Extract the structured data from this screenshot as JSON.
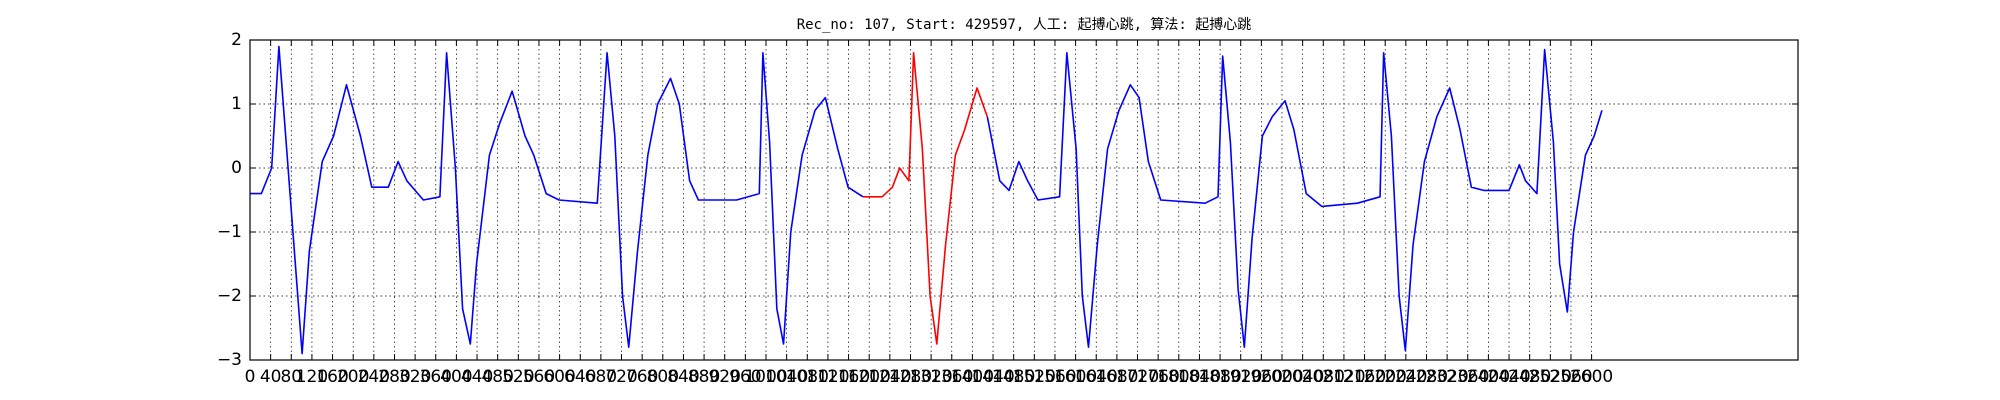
{
  "chart_data": {
    "type": "line",
    "title": "Rec_no: 107, Start: 429597, 人工: 起搏心跳, 算法: 起搏心跳",
    "x": [
      0,
      22,
      42,
      56,
      101,
      115,
      140,
      162,
      187,
      214,
      236,
      268,
      287,
      304,
      336,
      368,
      381,
      398,
      412,
      427,
      439,
      464,
      484,
      508,
      533,
      550,
      574,
      599,
      673,
      692,
      707,
      722,
      734,
      751,
      771,
      790,
      815,
      832,
      852,
      869,
      943,
      987,
      994,
      1007,
      1021,
      1034,
      1048,
      1070,
      1095,
      1115,
      1139,
      1159,
      1188,
      1225,
      1245,
      1259,
      1277,
      1286,
      1303,
      1318,
      1331,
      1348,
      1367,
      1385,
      1409,
      1429,
      1453,
      1471,
      1490,
      1507,
      1527,
      1569,
      1583,
      1601,
      1613,
      1625,
      1642,
      1662,
      1684,
      1706,
      1723,
      1741,
      1765,
      1851,
      1876,
      1885,
      1900,
      1915,
      1927,
      1942,
      1962,
      1981,
      2006,
      2023,
      2047,
      2077,
      2146,
      2190,
      2197,
      2212,
      2227,
      2239,
      2254,
      2276,
      2300,
      2325,
      2345,
      2367,
      2391,
      2440,
      2460,
      2472,
      2494,
      2509,
      2526,
      2538,
      2553,
      2565,
      2588,
      2605,
      2620
    ],
    "series": [
      {
        "color": "#0000ff",
        "values": [
          -0.4,
          -0.4,
          0,
          1.9,
          -2.9,
          -1.3,
          0.1,
          0.5,
          1.3,
          0.5,
          -0.3,
          -0.3,
          0.1,
          -0.2,
          -0.5,
          -0.45,
          1.8,
          0,
          -2.2,
          -2.75,
          -1.5,
          0.2,
          0.7,
          1.2,
          0.5,
          0.2,
          -0.4,
          -0.5,
          -0.55,
          1.8,
          0.5,
          -2,
          -2.8,
          -1.3,
          0.2,
          1.0,
          1.4,
          1.0,
          -0.2,
          -0.5,
          -0.5,
          -0.4,
          1.8,
          0.4,
          -2.2,
          -2.75,
          -1.0,
          0.2,
          0.9,
          1.1,
          0.3,
          -0.3,
          -0.45,
          null,
          null,
          null,
          null,
          null,
          null,
          null,
          null,
          null,
          null,
          null,
          null,
          0.8,
          -0.2,
          -0.35,
          0.1,
          -0.2,
          -0.5,
          -0.45,
          1.8,
          0.3,
          -2,
          -2.8,
          -1.2,
          0.3,
          0.9,
          1.3,
          1.1,
          0.1,
          -0.5,
          -0.55,
          -0.45,
          1.75,
          0.4,
          -1.9,
          -2.8,
          -1.1,
          0.5,
          0.8,
          1.05,
          0.6,
          -0.4,
          -0.6,
          -0.55,
          -0.45,
          1.8,
          0.5,
          -2,
          -2.85,
          -1.2,
          0.1,
          0.8,
          1.25,
          0.6,
          -0.3,
          -0.35,
          -0.35,
          0.05,
          -0.2,
          -0.4,
          1.85,
          0.4,
          -1.5,
          -2.25,
          -1.0,
          0.2,
          0.5,
          0.9
        ]
      },
      {
        "color": "#ff0000",
        "values": [
          null,
          null,
          null,
          null,
          null,
          null,
          null,
          null,
          null,
          null,
          null,
          null,
          null,
          null,
          null,
          null,
          null,
          null,
          null,
          null,
          null,
          null,
          null,
          null,
          null,
          null,
          null,
          null,
          null,
          null,
          null,
          null,
          null,
          null,
          null,
          null,
          null,
          null,
          null,
          null,
          null,
          null,
          null,
          null,
          null,
          null,
          null,
          null,
          null,
          null,
          null,
          null,
          -0.45,
          -0.45,
          -0.3,
          0,
          -0.2,
          1.8,
          0.3,
          -2,
          -2.75,
          -1.2,
          0.2,
          0.6,
          1.25,
          0.8,
          null,
          null,
          null,
          null,
          null,
          null,
          null,
          null,
          null,
          null,
          null,
          null,
          null,
          null,
          null,
          null,
          null,
          null,
          null,
          null,
          null,
          null,
          null,
          null,
          null,
          null,
          null,
          null,
          null,
          null,
          null,
          null,
          null,
          null,
          null,
          null,
          null,
          null,
          null,
          null,
          null,
          null,
          null,
          null,
          null,
          null,
          null,
          null,
          null,
          null,
          null,
          null,
          null,
          null,
          null
        ]
      }
    ],
    "xlim": [
      0,
      3000
    ],
    "xticks": [
      0,
      40,
      80,
      120,
      160,
      200,
      240,
      280,
      320,
      360,
      400,
      440,
      480,
      520,
      560,
      600,
      640,
      680,
      720,
      760,
      800,
      840,
      880,
      920,
      960,
      1000,
      1040,
      1080,
      1120,
      1160,
      1200,
      1240,
      1280,
      1320,
      1360,
      1400,
      1440,
      1480,
      1520,
      1560,
      1600,
      1640,
      1680,
      1720,
      1760,
      1800,
      1840,
      1880,
      1920,
      1960,
      2000,
      2040,
      2080,
      2120,
      2160,
      2200,
      2240,
      2280,
      2320,
      2360,
      2400,
      2440,
      2480,
      2520,
      2560,
      2600
    ],
    "ylim": [
      -3,
      2
    ],
    "yticks": [
      {
        "value": -3,
        "label": "−3"
      },
      {
        "value": -2,
        "label": "−2"
      },
      {
        "value": -1,
        "label": "−1"
      },
      0,
      1,
      2
    ],
    "grid": true
  }
}
